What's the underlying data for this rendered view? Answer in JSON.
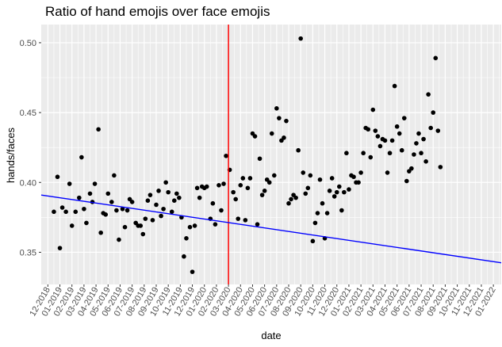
{
  "chart_data": {
    "type": "scatter",
    "title": "Ratio of hand emojis over face emojis",
    "xlabel": "date",
    "ylabel": "hands/faces",
    "x_tick_labels": [
      "12-2018",
      "01-2019",
      "02-2019",
      "03-2019",
      "04-2019",
      "05-2019",
      "06-2019",
      "07-2019",
      "08-2019",
      "09-2019",
      "10-2019",
      "11-2019",
      "12-2019",
      "01-2020",
      "02-2020",
      "03-2020",
      "04-2020",
      "05-2020",
      "06-2020",
      "07-2020",
      "08-2020",
      "09-2020",
      "10-2020",
      "11-2020",
      "12-2020",
      "01-2021",
      "02-2021",
      "03-2021",
      "04-2021",
      "05-2021",
      "06-2021",
      "07-2021",
      "08-2021",
      "09-2021",
      "10-2021",
      "11-2021",
      "12-2021",
      "01-2022"
    ],
    "y_ticks": [
      "0.35",
      "0.40",
      "0.45",
      "0.50"
    ],
    "ylim": [
      0.327,
      0.513
    ],
    "xlim_months": [
      -0.55,
      37.65
    ],
    "grid": true,
    "background": "#ebebeb",
    "point_color": "#000000",
    "vertical_line": {
      "x": 15.0,
      "color": "#ff0000"
    },
    "trend_line": {
      "x": [
        -0.55,
        37.65
      ],
      "y": [
        0.391,
        0.3425
      ],
      "color": "#0000ff"
    },
    "points": [
      [
        0.5,
        0.379
      ],
      [
        0.8,
        0.404
      ],
      [
        1.0,
        0.353
      ],
      [
        1.2,
        0.382
      ],
      [
        1.5,
        0.379
      ],
      [
        1.8,
        0.399
      ],
      [
        2.0,
        0.369
      ],
      [
        2.3,
        0.379
      ],
      [
        2.6,
        0.389
      ],
      [
        2.8,
        0.418
      ],
      [
        3.0,
        0.381
      ],
      [
        3.2,
        0.371
      ],
      [
        3.5,
        0.392
      ],
      [
        3.7,
        0.386
      ],
      [
        3.9,
        0.399
      ],
      [
        4.2,
        0.438
      ],
      [
        4.4,
        0.364
      ],
      [
        4.6,
        0.378
      ],
      [
        4.8,
        0.377
      ],
      [
        5.0,
        0.392
      ],
      [
        5.3,
        0.386
      ],
      [
        5.5,
        0.405
      ],
      [
        5.7,
        0.38
      ],
      [
        5.9,
        0.359
      ],
      [
        6.2,
        0.381
      ],
      [
        6.4,
        0.368
      ],
      [
        6.6,
        0.38
      ],
      [
        6.8,
        0.388
      ],
      [
        7.0,
        0.386
      ],
      [
        7.3,
        0.371
      ],
      [
        7.5,
        0.369
      ],
      [
        7.7,
        0.369
      ],
      [
        7.9,
        0.363
      ],
      [
        8.1,
        0.374
      ],
      [
        8.3,
        0.387
      ],
      [
        8.5,
        0.391
      ],
      [
        8.7,
        0.373
      ],
      [
        9.0,
        0.384
      ],
      [
        9.2,
        0.394
      ],
      [
        9.4,
        0.376
      ],
      [
        9.6,
        0.381
      ],
      [
        9.8,
        0.4
      ],
      [
        10.0,
        0.393
      ],
      [
        10.3,
        0.379
      ],
      [
        10.5,
        0.387
      ],
      [
        10.7,
        0.392
      ],
      [
        10.9,
        0.389
      ],
      [
        11.1,
        0.375
      ],
      [
        11.3,
        0.347
      ],
      [
        11.5,
        0.36
      ],
      [
        11.8,
        0.368
      ],
      [
        12.0,
        0.336
      ],
      [
        12.2,
        0.369
      ],
      [
        12.4,
        0.396
      ],
      [
        12.6,
        0.389
      ],
      [
        12.8,
        0.397
      ],
      [
        13.0,
        0.396
      ],
      [
        13.2,
        0.397
      ],
      [
        13.5,
        0.374
      ],
      [
        13.7,
        0.385
      ],
      [
        13.9,
        0.37
      ],
      [
        14.2,
        0.398
      ],
      [
        14.4,
        0.38
      ],
      [
        14.6,
        0.399
      ],
      [
        14.8,
        0.419
      ],
      [
        15.1,
        0.409
      ],
      [
        15.4,
        0.393
      ],
      [
        15.6,
        0.388
      ],
      [
        15.8,
        0.374
      ],
      [
        16.0,
        0.398
      ],
      [
        16.2,
        0.403
      ],
      [
        16.4,
        0.373
      ],
      [
        16.6,
        0.396
      ],
      [
        16.8,
        0.403
      ],
      [
        17.0,
        0.435
      ],
      [
        17.2,
        0.433
      ],
      [
        17.4,
        0.37
      ],
      [
        17.6,
        0.417
      ],
      [
        17.8,
        0.391
      ],
      [
        18.0,
        0.394
      ],
      [
        18.2,
        0.402
      ],
      [
        18.4,
        0.4
      ],
      [
        18.6,
        0.435
      ],
      [
        18.8,
        0.405
      ],
      [
        19.0,
        0.453
      ],
      [
        19.2,
        0.446
      ],
      [
        19.4,
        0.43
      ],
      [
        19.6,
        0.432
      ],
      [
        19.8,
        0.444
      ],
      [
        20.0,
        0.385
      ],
      [
        20.2,
        0.388
      ],
      [
        20.4,
        0.391
      ],
      [
        20.6,
        0.389
      ],
      [
        20.8,
        0.423
      ],
      [
        21.0,
        0.503
      ],
      [
        21.2,
        0.407
      ],
      [
        21.4,
        0.392
      ],
      [
        21.6,
        0.396
      ],
      [
        21.8,
        0.405
      ],
      [
        22.0,
        0.358
      ],
      [
        22.2,
        0.371
      ],
      [
        22.4,
        0.378
      ],
      [
        22.6,
        0.402
      ],
      [
        22.8,
        0.385
      ],
      [
        23.0,
        0.36
      ],
      [
        23.2,
        0.378
      ],
      [
        23.4,
        0.394
      ],
      [
        23.6,
        0.403
      ],
      [
        23.8,
        0.39
      ],
      [
        24.0,
        0.393
      ],
      [
        24.2,
        0.397
      ],
      [
        24.4,
        0.38
      ],
      [
        24.6,
        0.393
      ],
      [
        24.8,
        0.421
      ],
      [
        25.0,
        0.395
      ],
      [
        25.2,
        0.405
      ],
      [
        25.4,
        0.404
      ],
      [
        25.6,
        0.4
      ],
      [
        25.8,
        0.4
      ],
      [
        26.0,
        0.407
      ],
      [
        26.2,
        0.421
      ],
      [
        26.4,
        0.439
      ],
      [
        26.6,
        0.438
      ],
      [
        26.8,
        0.418
      ],
      [
        27.0,
        0.452
      ],
      [
        27.2,
        0.437
      ],
      [
        27.4,
        0.433
      ],
      [
        27.6,
        0.426
      ],
      [
        27.8,
        0.431
      ],
      [
        28.0,
        0.43
      ],
      [
        28.2,
        0.407
      ],
      [
        28.4,
        0.421
      ],
      [
        28.6,
        0.43
      ],
      [
        28.8,
        0.469
      ],
      [
        29.0,
        0.44
      ],
      [
        29.2,
        0.435
      ],
      [
        29.4,
        0.423
      ],
      [
        29.6,
        0.446
      ],
      [
        29.8,
        0.401
      ],
      [
        30.0,
        0.408
      ],
      [
        30.2,
        0.41
      ],
      [
        30.4,
        0.42
      ],
      [
        30.6,
        0.428
      ],
      [
        30.8,
        0.435
      ],
      [
        31.0,
        0.421
      ],
      [
        31.2,
        0.431
      ],
      [
        31.4,
        0.415
      ],
      [
        31.6,
        0.463
      ],
      [
        31.8,
        0.439
      ],
      [
        32.0,
        0.45
      ],
      [
        32.2,
        0.489
      ],
      [
        32.4,
        0.437
      ],
      [
        32.6,
        0.411
      ]
    ]
  }
}
